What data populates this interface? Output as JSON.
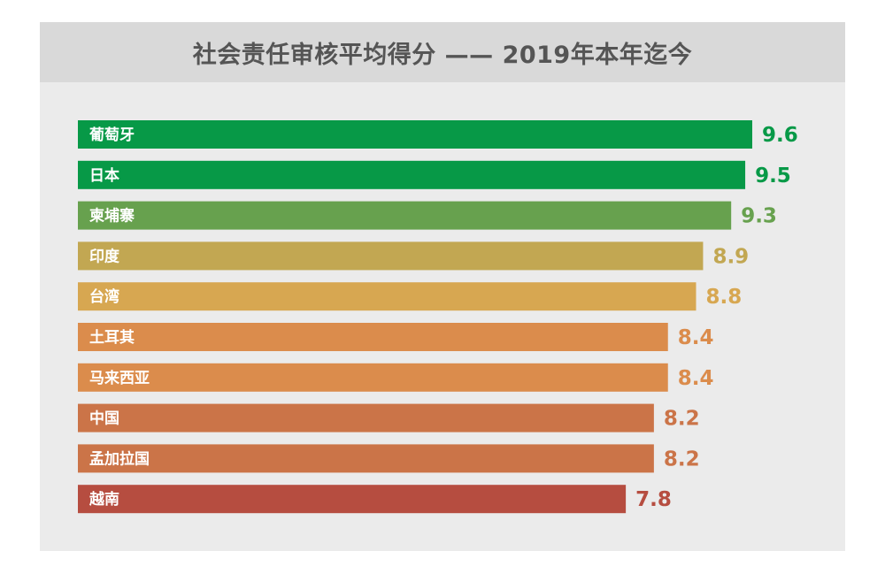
{
  "chart_data": {
    "type": "bar",
    "orientation": "horizontal",
    "title": "社会责任审核平均得分 —— 2019年本年迄今",
    "categories": [
      "葡萄牙",
      "日本",
      "柬埔寨",
      "印度",
      "台湾",
      "土耳其",
      "马来西亚",
      "中国",
      "孟加拉国",
      "越南"
    ],
    "values": [
      9.6,
      9.5,
      9.3,
      8.9,
      8.8,
      8.4,
      8.4,
      8.2,
      8.2,
      7.8
    ],
    "value_labels": [
      "9.6",
      "9.5",
      "9.3",
      "8.9",
      "8.8",
      "8.4",
      "8.4",
      "8.2",
      "8.2",
      "7.8"
    ],
    "colors": [
      "#079947",
      "#079947",
      "#67a14e",
      "#c2a752",
      "#d7a751",
      "#db8c4c",
      "#db8c4c",
      "#cb7448",
      "#cb7448",
      "#b64d40"
    ],
    "xlim": [
      0,
      9.6
    ],
    "grid": false,
    "legend": "none"
  }
}
